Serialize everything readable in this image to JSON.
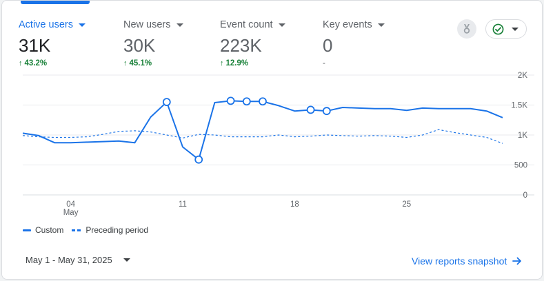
{
  "metrics": [
    {
      "label": "Active users",
      "value": "31K",
      "change": "43.2%",
      "active": true
    },
    {
      "label": "New users",
      "value": "30K",
      "change": "45.1%",
      "active": false
    },
    {
      "label": "Event count",
      "value": "223K",
      "change": "12.9%",
      "active": false
    },
    {
      "label": "Key events",
      "value": "0",
      "change": "-",
      "active": false
    }
  ],
  "icons": {
    "up_arrow": "arrow-up-icon",
    "caret": "caret-down-icon",
    "insights": "medal-icon",
    "status": "check-circle-icon",
    "link_arrow": "arrow-right-icon"
  },
  "colors": {
    "accent": "#1a73e8",
    "positive": "#188038",
    "status_check": "#188038"
  },
  "chart_data": {
    "type": "line",
    "x_tick_labels": [
      "04",
      "11",
      "18",
      "25"
    ],
    "x_tick_sublabel": "May",
    "x_tick_days": [
      4,
      11,
      18,
      25
    ],
    "y_tick_labels": [
      "2K",
      "1.5K",
      "1K",
      "500",
      "0"
    ],
    "ylim": [
      0,
      2000
    ],
    "xlim": [
      1,
      31
    ],
    "grid": true,
    "legend_position": "bottom-left",
    "series": [
      {
        "name": "Custom",
        "style": "solid",
        "x": [
          1,
          2,
          3,
          4,
          5,
          6,
          7,
          8,
          9,
          10,
          11,
          12,
          13,
          14,
          15,
          16,
          17,
          18,
          19,
          20,
          21,
          22,
          23,
          24,
          25,
          26,
          27,
          28,
          29,
          30,
          31
        ],
        "values": [
          1030,
          990,
          870,
          870,
          880,
          890,
          900,
          870,
          1300,
          1550,
          800,
          590,
          1540,
          1570,
          1560,
          1560,
          1490,
          1400,
          1420,
          1400,
          1460,
          1450,
          1440,
          1440,
          1410,
          1450,
          1440,
          1440,
          1440,
          1400,
          1290
        ],
        "markers_at": [
          10,
          12,
          14,
          15,
          16,
          19,
          20
        ]
      },
      {
        "name": "Preceding period",
        "style": "dashed",
        "x": [
          1,
          2,
          3,
          4,
          5,
          6,
          7,
          8,
          9,
          10,
          11,
          12,
          13,
          14,
          15,
          16,
          17,
          18,
          19,
          20,
          21,
          22,
          23,
          24,
          25,
          26,
          27,
          28,
          29,
          30,
          31
        ],
        "values": [
          990,
          970,
          960,
          960,
          970,
          1010,
          1060,
          1070,
          1050,
          1000,
          950,
          1010,
          1000,
          970,
          970,
          970,
          1000,
          970,
          980,
          1000,
          990,
          980,
          990,
          980,
          960,
          1000,
          1090,
          1040,
          1000,
          960,
          860
        ]
      }
    ]
  },
  "date_range": {
    "label": "May 1 - May 31, 2025"
  },
  "snapshot_link": {
    "label": "View reports snapshot"
  }
}
